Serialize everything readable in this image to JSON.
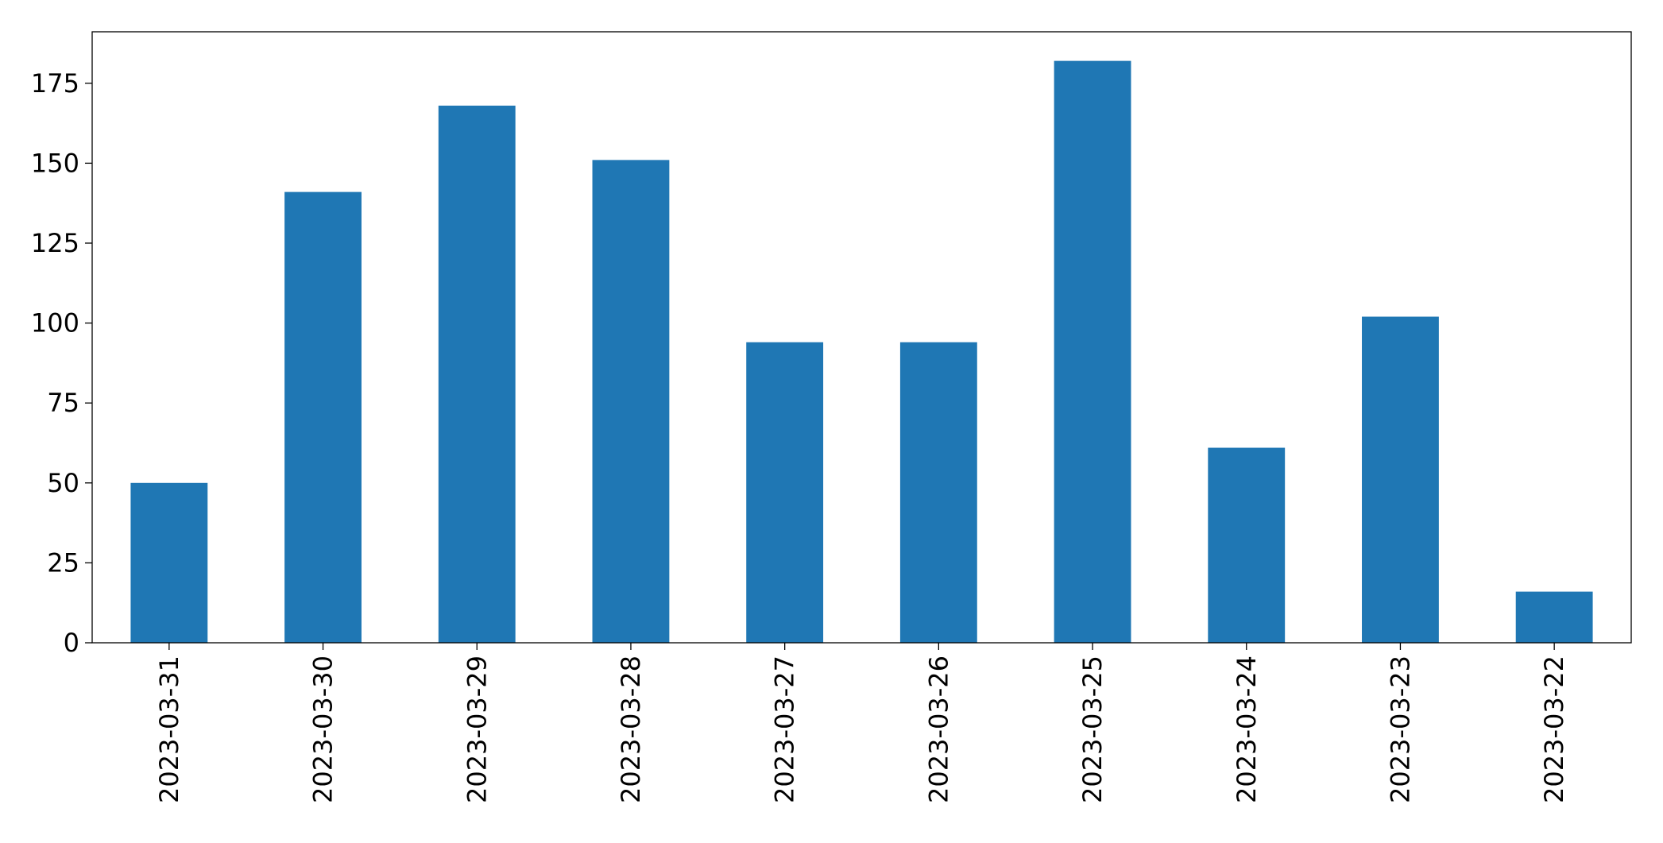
{
  "chart_data": {
    "type": "bar",
    "categories": [
      "2023-03-31",
      "2023-03-30",
      "2023-03-29",
      "2023-03-28",
      "2023-03-27",
      "2023-03-26",
      "2023-03-25",
      "2023-03-24",
      "2023-03-23",
      "2023-03-22"
    ],
    "values": [
      50,
      141,
      168,
      151,
      94,
      94,
      182,
      61,
      102,
      16
    ],
    "color": "#1f77b4",
    "ylim": [
      0,
      191.1
    ],
    "yticks": [
      0,
      25,
      50,
      75,
      100,
      125,
      150,
      175
    ],
    "grid": false
  }
}
